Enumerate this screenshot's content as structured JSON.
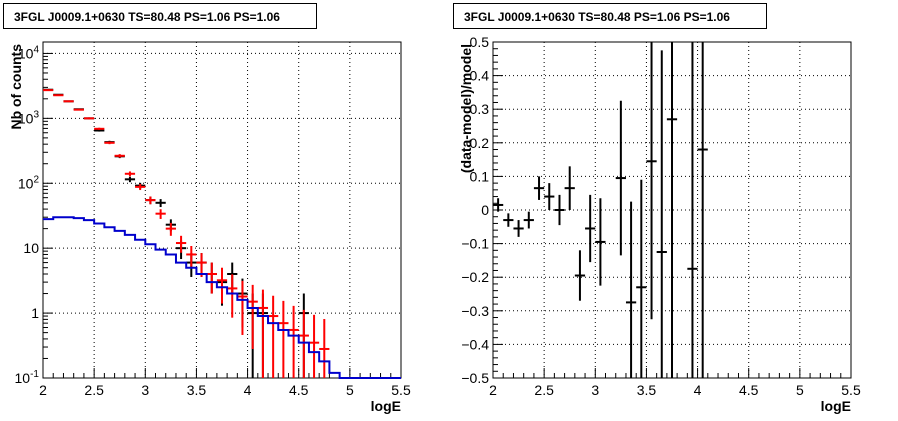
{
  "chart_data": [
    {
      "type": "histogram",
      "title": "3FGL J0009.1+0630 TS=80.48 PS=1.06 PS=1.06",
      "xlabel": "logE",
      "ylabel": "Nb of counts",
      "xlim": [
        2,
        5.5
      ],
      "ylim": [
        0.1,
        15000
      ],
      "yscale": "log",
      "grid": true,
      "x_ticks": [
        "2",
        "2.5",
        "3",
        "3.5",
        "4",
        "4.5",
        "5",
        "5.5"
      ],
      "y_ticks": [
        "10^{-1}",
        "1",
        "10",
        "10^{2}",
        "10^{3}",
        "10^{4}"
      ],
      "bin_width": 0.1,
      "series": [
        {
          "color": "#000000",
          "style": "errorbar",
          "x": [
            2.05,
            2.15,
            2.25,
            2.35,
            2.45,
            2.55,
            2.65,
            2.75,
            2.85,
            2.95,
            3.05,
            3.15,
            3.25,
            3.35,
            3.45,
            3.55,
            3.65,
            3.75,
            3.85,
            3.95,
            4.05,
            4.15,
            4.25,
            4.35,
            4.45,
            4.55
          ],
          "y": [
            2760,
            2310,
            1830,
            1380,
            1000,
            650,
            430,
            260,
            115,
            92,
            55,
            50,
            23,
            10,
            6,
            6,
            4,
            3,
            4,
            2,
            1,
            1,
            0,
            0,
            0,
            1
          ],
          "err": [
            52,
            48,
            43,
            37,
            32,
            25,
            21,
            16,
            11,
            9.6,
            7.4,
            7,
            4.8,
            3.2,
            2.4,
            2.4,
            2,
            1.7,
            2,
            1.4,
            1,
            1,
            0,
            0,
            0,
            1
          ]
        },
        {
          "color": "#ff0000",
          "style": "errorbar",
          "x": [
            2.05,
            2.15,
            2.25,
            2.35,
            2.45,
            2.55,
            2.65,
            2.75,
            2.85,
            2.95,
            3.05,
            3.15,
            3.25,
            3.35,
            3.45,
            3.55,
            3.65,
            3.75,
            3.85,
            3.95,
            4.05,
            4.15,
            4.25,
            4.35,
            4.45,
            4.55,
            4.65,
            4.75
          ],
          "y": [
            2720,
            2270,
            1830,
            1360,
            1000,
            690,
            420,
            265,
            140,
            88,
            55,
            34,
            20,
            12,
            8,
            6,
            4,
            3.2,
            2.4,
            1.8,
            1.5,
            1.2,
            0.9,
            0.7,
            0.55,
            0.45,
            0.35,
            0.28
          ],
          "err": [
            52,
            48,
            43,
            37,
            32,
            26,
            20,
            16,
            12,
            9.4,
            7.4,
            5.8,
            4.5,
            3.5,
            2.8,
            2.4,
            2,
            1.8,
            1.55,
            1.34,
            1.22,
            1.1,
            0.95,
            0.84,
            0.74,
            0.67,
            0.59,
            0.53
          ]
        },
        {
          "color": "#0000cc",
          "style": "step",
          "x": [
            2.05,
            2.15,
            2.25,
            2.35,
            2.45,
            2.55,
            2.65,
            2.75,
            2.85,
            2.95,
            3.05,
            3.15,
            3.25,
            3.35,
            3.45,
            3.55,
            3.65,
            3.75,
            3.85,
            3.95,
            4.05,
            4.15,
            4.25,
            4.35,
            4.45,
            4.55,
            4.65,
            4.75,
            4.85,
            4.95,
            5.05,
            5.15,
            5.25,
            5.35,
            5.45
          ],
          "y": [
            28,
            30,
            30,
            29,
            27,
            24,
            21,
            18.5,
            16,
            13.5,
            11.5,
            9.5,
            8,
            6,
            5,
            4,
            3,
            2.5,
            2,
            1.6,
            1.2,
            0.9,
            0.7,
            0.55,
            0.45,
            0.35,
            0.25,
            0.18,
            0.12,
            0.1,
            0.1,
            0.1,
            0.1,
            0.1,
            0.1
          ]
        }
      ]
    },
    {
      "type": "errorbar",
      "title": "3FGL J0009.1+0630 TS=80.48 PS=1.06 PS=1.06",
      "xlabel": "logE",
      "ylabel": "(data-model)/model",
      "xlim": [
        2,
        5.5
      ],
      "ylim": [
        -0.5,
        0.5
      ],
      "grid": true,
      "x_ticks": [
        "2",
        "2.5",
        "3",
        "3.5",
        "4",
        "4.5",
        "5",
        "5.5"
      ],
      "y_ticks": [
        "−0.5",
        "−0.4",
        "−0.3",
        "−0.2",
        "−0.1",
        "0",
        "0.1",
        "0.2",
        "0.3",
        "0.4",
        "0.5"
      ],
      "bin_width": 0.1,
      "series": [
        {
          "color": "#000000",
          "x": [
            2.05,
            2.15,
            2.25,
            2.35,
            2.45,
            2.55,
            2.65,
            2.75,
            2.85,
            2.95,
            3.05,
            3.25,
            3.35,
            3.45,
            3.55,
            3.65,
            3.75,
            3.95,
            4.05
          ],
          "y": [
            0.015,
            -0.03,
            -0.055,
            -0.03,
            0.065,
            0.04,
            0.0,
            0.065,
            -0.195,
            -0.055,
            -0.095,
            0.095,
            -0.275,
            -0.23,
            0.145,
            -0.125,
            0.27,
            -0.175,
            0.18
          ],
          "err": [
            0.02,
            0.02,
            0.025,
            0.025,
            0.035,
            0.04,
            0.045,
            0.065,
            0.075,
            0.1,
            0.13,
            0.23,
            0.3,
            0.32,
            0.47,
            0.6,
            0.8,
            0.75,
            0.9
          ]
        }
      ]
    }
  ]
}
